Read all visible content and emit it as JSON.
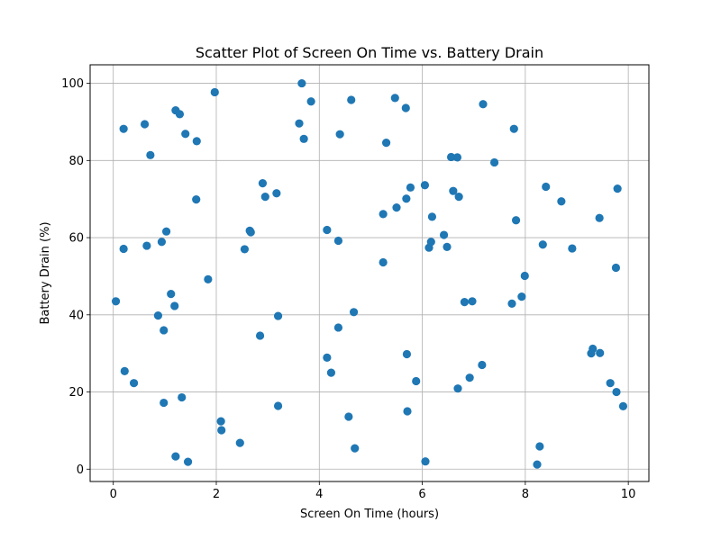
{
  "chart_data": {
    "type": "scatter",
    "title": "Scatter Plot of Screen On Time vs. Battery Drain",
    "xlabel": "Screen On Time (hours)",
    "ylabel": "Battery Drain (%)",
    "xlim": [
      -0.45,
      10.4
    ],
    "ylim": [
      -3.2,
      104.8
    ],
    "xticks": [
      0,
      2,
      4,
      6,
      8,
      10
    ],
    "yticks": [
      0,
      20,
      40,
      60,
      80,
      100
    ],
    "grid": true,
    "marker_color": "#1f77b4",
    "points": [
      [
        0.05,
        43.5
      ],
      [
        0.2,
        88.2
      ],
      [
        0.2,
        57.1
      ],
      [
        0.22,
        25.4
      ],
      [
        0.4,
        22.3
      ],
      [
        0.61,
        89.4
      ],
      [
        0.65,
        57.9
      ],
      [
        0.72,
        81.4
      ],
      [
        0.87,
        39.8
      ],
      [
        0.94,
        58.9
      ],
      [
        0.98,
        36.0
      ],
      [
        0.98,
        17.2
      ],
      [
        1.03,
        61.6
      ],
      [
        1.12,
        45.4
      ],
      [
        1.19,
        42.3
      ],
      [
        1.21,
        93.0
      ],
      [
        1.21,
        3.3
      ],
      [
        1.29,
        92.0
      ],
      [
        1.33,
        18.6
      ],
      [
        1.4,
        86.9
      ],
      [
        1.45,
        1.9
      ],
      [
        1.61,
        69.9
      ],
      [
        1.62,
        85.0
      ],
      [
        1.84,
        49.2
      ],
      [
        1.97,
        97.7
      ],
      [
        2.09,
        12.4
      ],
      [
        2.1,
        10.1
      ],
      [
        2.46,
        6.8
      ],
      [
        2.55,
        57.0
      ],
      [
        2.65,
        61.8
      ],
      [
        2.67,
        61.4
      ],
      [
        2.85,
        34.6
      ],
      [
        2.9,
        74.1
      ],
      [
        2.95,
        70.6
      ],
      [
        3.17,
        71.5
      ],
      [
        3.2,
        39.7
      ],
      [
        3.2,
        16.4
      ],
      [
        3.61,
        89.6
      ],
      [
        3.66,
        100.0
      ],
      [
        3.7,
        85.6
      ],
      [
        3.84,
        95.3
      ],
      [
        4.15,
        62.0
      ],
      [
        4.15,
        28.9
      ],
      [
        4.23,
        25.0
      ],
      [
        4.37,
        59.2
      ],
      [
        4.37,
        36.7
      ],
      [
        4.4,
        86.8
      ],
      [
        4.57,
        13.6
      ],
      [
        4.62,
        95.7
      ],
      [
        4.67,
        40.7
      ],
      [
        4.69,
        5.4
      ],
      [
        5.24,
        66.1
      ],
      [
        5.24,
        53.6
      ],
      [
        5.3,
        84.6
      ],
      [
        5.47,
        96.2
      ],
      [
        5.5,
        67.8
      ],
      [
        5.68,
        93.6
      ],
      [
        5.69,
        70.1
      ],
      [
        5.7,
        29.8
      ],
      [
        5.71,
        15.0
      ],
      [
        5.77,
        73.0
      ],
      [
        5.88,
        22.8
      ],
      [
        6.05,
        73.6
      ],
      [
        6.06,
        2.0
      ],
      [
        6.13,
        57.4
      ],
      [
        6.17,
        58.9
      ],
      [
        6.19,
        65.4
      ],
      [
        6.42,
        60.7
      ],
      [
        6.48,
        57.6
      ],
      [
        6.56,
        80.9
      ],
      [
        6.6,
        72.1
      ],
      [
        6.68,
        80.8
      ],
      [
        6.69,
        20.9
      ],
      [
        6.71,
        70.6
      ],
      [
        6.82,
        43.3
      ],
      [
        6.92,
        23.7
      ],
      [
        6.97,
        43.5
      ],
      [
        7.16,
        27.0
      ],
      [
        7.18,
        94.6
      ],
      [
        7.4,
        79.5
      ],
      [
        7.74,
        42.9
      ],
      [
        7.78,
        88.2
      ],
      [
        7.82,
        64.5
      ],
      [
        7.93,
        44.7
      ],
      [
        7.99,
        50.1
      ],
      [
        8.23,
        1.2
      ],
      [
        8.28,
        5.9
      ],
      [
        8.34,
        58.2
      ],
      [
        8.4,
        73.2
      ],
      [
        8.7,
        69.4
      ],
      [
        8.91,
        57.2
      ],
      [
        9.28,
        30.0
      ],
      [
        9.31,
        31.2
      ],
      [
        9.44,
        65.1
      ],
      [
        9.45,
        30.1
      ],
      [
        9.65,
        22.3
      ],
      [
        9.76,
        52.2
      ],
      [
        9.77,
        20.0
      ],
      [
        9.79,
        72.7
      ],
      [
        9.9,
        16.3
      ]
    ]
  }
}
